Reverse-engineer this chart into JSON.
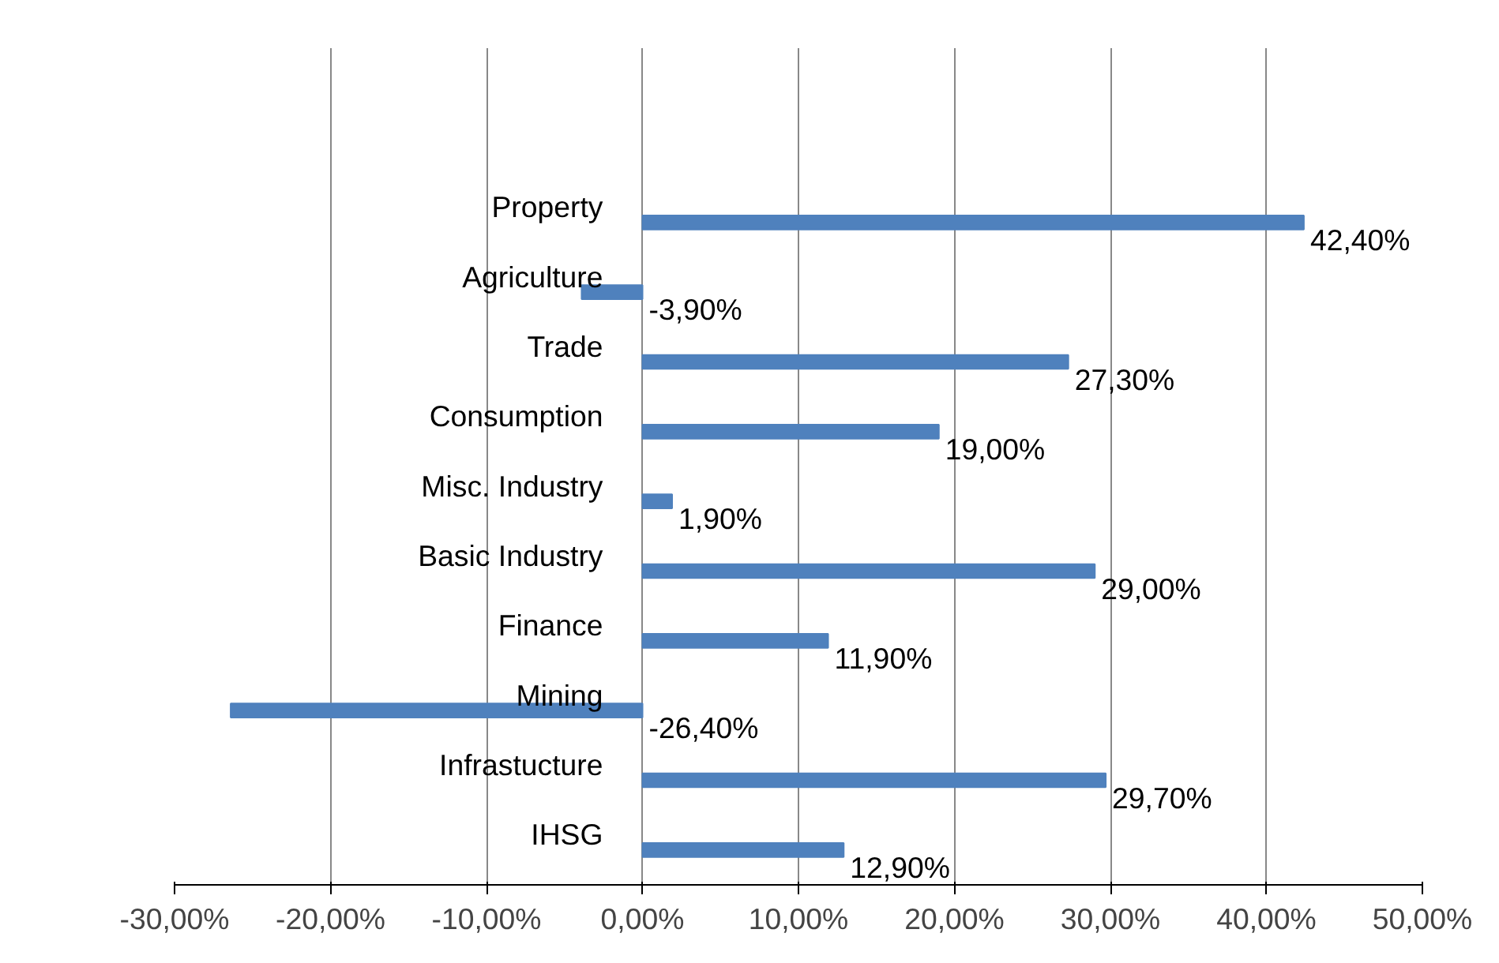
{
  "chart_data": {
    "type": "bar",
    "orientation": "horizontal",
    "categories": [
      null,
      null,
      "Property",
      "Agriculture",
      "Trade",
      "Consumption",
      "Misc. Industry",
      "Basic Industry",
      "Finance",
      "Mining",
      "Infrastucture",
      "IHSG"
    ],
    "series": [
      {
        "color": "#4f81bd",
        "values": [
          null,
          null,
          42.4,
          -3.9,
          27.3,
          19.0,
          1.9,
          29.0,
          11.9,
          -26.4,
          29.7,
          12.9
        ],
        "value_labels": [
          null,
          null,
          "42,40%",
          "-3,90%",
          "27,30%",
          "19,00%",
          "1,90%",
          "29,00%",
          "11,90%",
          "-26,40%",
          "29,70%",
          "12,90%"
        ]
      }
    ],
    "xlim": [
      -30,
      50
    ],
    "xticks": [
      {
        "value": -30,
        "label": "-30,00%"
      },
      {
        "value": -20,
        "label": "-20,00%"
      },
      {
        "value": -10,
        "label": "-10,00%"
      },
      {
        "value": 0,
        "label": "0,00%"
      },
      {
        "value": 10,
        "label": "10,00%"
      },
      {
        "value": 20,
        "label": "20,00%"
      },
      {
        "value": 30,
        "label": "30,00%"
      },
      {
        "value": 40,
        "label": "40,00%"
      },
      {
        "value": 50,
        "label": "50,00%"
      }
    ],
    "grid": "x"
  }
}
